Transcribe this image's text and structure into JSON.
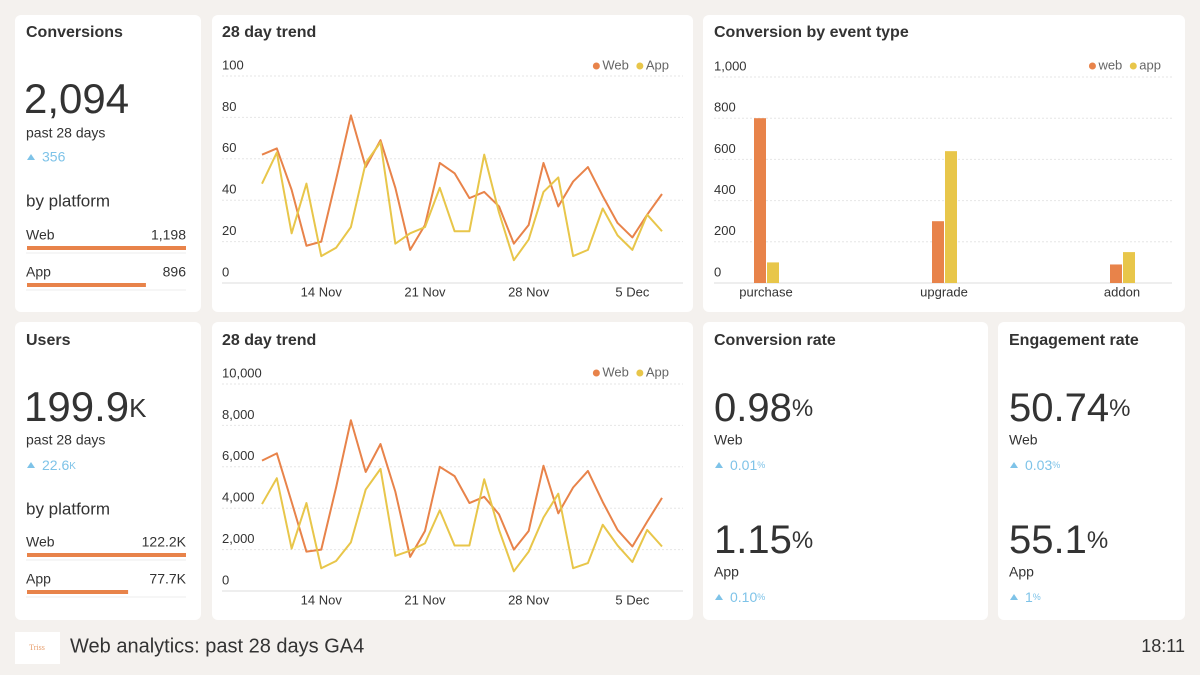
{
  "conversions": {
    "title": "Conversions",
    "total": "2,094",
    "period": "past 28 days",
    "delta": "356",
    "platform_heading": "by platform",
    "platforms": [
      {
        "name": "Web",
        "value": 1198,
        "label": "1,198"
      },
      {
        "name": "App",
        "value": 896
      }
    ]
  },
  "users": {
    "title": "Users",
    "total": "199.9",
    "total_unit": "K",
    "period": "past 28 days",
    "delta": "22.6",
    "delta_unit": "K",
    "platform_heading": "by platform",
    "platforms": [
      {
        "name": "Web",
        "value": 122200,
        "label": "122.2K"
      },
      {
        "name": "App",
        "value": 77700,
        "label": "77.7K"
      }
    ]
  },
  "rates": [
    {
      "title": "Conversion rate",
      "items": [
        {
          "value": "0.98",
          "unit": "%",
          "name": "Web",
          "delta": "0.01",
          "delta_unit": "%"
        },
        {
          "value": "1.15",
          "unit": "%",
          "name": "App",
          "delta": "0.10",
          "delta_unit": "%"
        }
      ]
    },
    {
      "title": "Engagement rate",
      "items": [
        {
          "value": "50.74",
          "unit": "%",
          "name": "Web",
          "delta": "0.03",
          "delta_unit": "%"
        },
        {
          "value": "55.1",
          "unit": "%",
          "name": "App",
          "delta": "1",
          "delta_unit": "%"
        }
      ]
    }
  ],
  "footer": {
    "logo": "Triss",
    "title": "Web analytics: past 28 days GA4",
    "time": "18:11"
  },
  "chart_data": [
    {
      "type": "line",
      "title": "28 day trend",
      "categories": [
        null,
        null,
        null,
        null,
        "14 Nov",
        null,
        null,
        null,
        null,
        null,
        null,
        "21 Nov",
        null,
        null,
        null,
        null,
        null,
        null,
        "28 Nov",
        null,
        null,
        null,
        null,
        null,
        null,
        "5 Dec",
        null,
        null
      ],
      "series": [
        {
          "name": "Web",
          "color": "#e8834a",
          "values": [
            62,
            65,
            45,
            18,
            20,
            50,
            81,
            56,
            69,
            46,
            16,
            28,
            58,
            53,
            41,
            44,
            37,
            19,
            28,
            58,
            37,
            49,
            56,
            42,
            29,
            22,
            33,
            43
          ]
        },
        {
          "name": "App",
          "color": "#e8c64a",
          "values": [
            48,
            63,
            24,
            48,
            13,
            17,
            27,
            58,
            68,
            19,
            24,
            27,
            46,
            25,
            25,
            62,
            34,
            11,
            21,
            44,
            51,
            13,
            16,
            36,
            23,
            16,
            33,
            25
          ]
        }
      ],
      "ylim": [
        0,
        100
      ],
      "yticks": [
        0,
        20,
        40,
        60,
        80,
        100
      ],
      "grid": true,
      "legend": "top-right"
    },
    {
      "type": "bar",
      "title": "Conversion by event type",
      "categories": [
        "purchase",
        "upgrade",
        "addon"
      ],
      "series": [
        {
          "name": "web",
          "color": "#e8834a",
          "values": [
            800,
            300,
            90
          ]
        },
        {
          "name": "app",
          "color": "#e8c64a",
          "values": [
            100,
            640,
            150
          ]
        }
      ],
      "ylim": [
        0,
        1000
      ],
      "yticks": [
        0,
        200,
        400,
        600,
        800,
        {
          "value": 1000,
          "label": "1,000"
        }
      ],
      "grid": true,
      "legend": "top-right"
    },
    {
      "type": "line",
      "title": "28 day trend",
      "categories": [
        null,
        null,
        null,
        null,
        "14 Nov",
        null,
        null,
        null,
        null,
        null,
        null,
        "21 Nov",
        null,
        null,
        null,
        null,
        null,
        null,
        "28 Nov",
        null,
        null,
        null,
        null,
        null,
        null,
        "5 Dec",
        null,
        null
      ],
      "series": [
        {
          "name": "Web",
          "color": "#e8834a",
          "values": [
            6300,
            6650,
            4300,
            1900,
            2000,
            5000,
            8250,
            5750,
            7100,
            4800,
            1650,
            2900,
            6000,
            5550,
            4250,
            4550,
            3700,
            2000,
            2900,
            6050,
            3750,
            5000,
            5800,
            4300,
            2950,
            2150,
            3350,
            4500
          ]
        },
        {
          "name": "App",
          "color": "#e8c64a",
          "values": [
            4200,
            5450,
            2050,
            4250,
            1100,
            1450,
            2350,
            4900,
            5900,
            1700,
            1950,
            2300,
            3900,
            2200,
            2200,
            5400,
            2950,
            950,
            1900,
            3550,
            4700,
            1100,
            1350,
            3200,
            2200,
            1400,
            2950,
            2150
          ]
        }
      ],
      "ylim": [
        0,
        10000
      ],
      "yticks": [
        0,
        {
          "value": 2000,
          "label": "2,000"
        },
        {
          "value": 4000,
          "label": "4,000"
        },
        {
          "value": 6000,
          "label": "6,000"
        },
        {
          "value": 8000,
          "label": "8,000"
        },
        {
          "value": 10000,
          "label": "10,000"
        }
      ],
      "grid": true,
      "legend": "top-right"
    }
  ]
}
